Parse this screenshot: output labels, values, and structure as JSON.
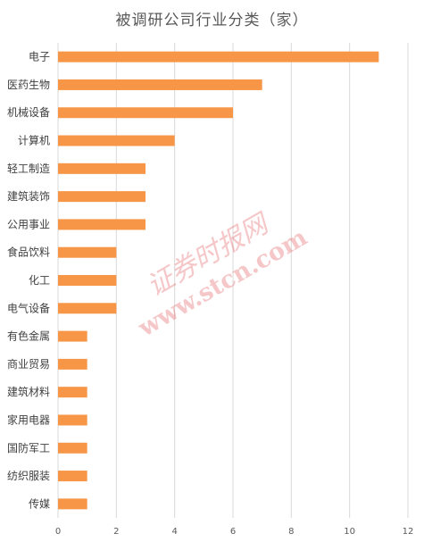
{
  "chart_data": {
    "type": "bar",
    "orientation": "horizontal",
    "title": "被调研公司行业分类（家）",
    "categories": [
      "电子",
      "医药生物",
      "机械设备",
      "计算机",
      "轻工制造",
      "建筑装饰",
      "公用事业",
      "食品饮料",
      "化工",
      "电气设备",
      "有色金属",
      "商业贸易",
      "建筑材料",
      "家用电器",
      "国防军工",
      "纺织服装",
      "传媒"
    ],
    "values": [
      11,
      7,
      6,
      4,
      3,
      3,
      3,
      2,
      2,
      2,
      1,
      1,
      1,
      1,
      1,
      1,
      1
    ],
    "xlim": [
      0,
      12
    ],
    "xticks": [
      0,
      2,
      4,
      6,
      8,
      10,
      12
    ],
    "grid": true,
    "legend": "none",
    "bar_color": "#f79646",
    "grid_color": "#d9d9d9"
  },
  "watermark": {
    "line1": "证券时报网",
    "line2": "www.stcn.com"
  }
}
